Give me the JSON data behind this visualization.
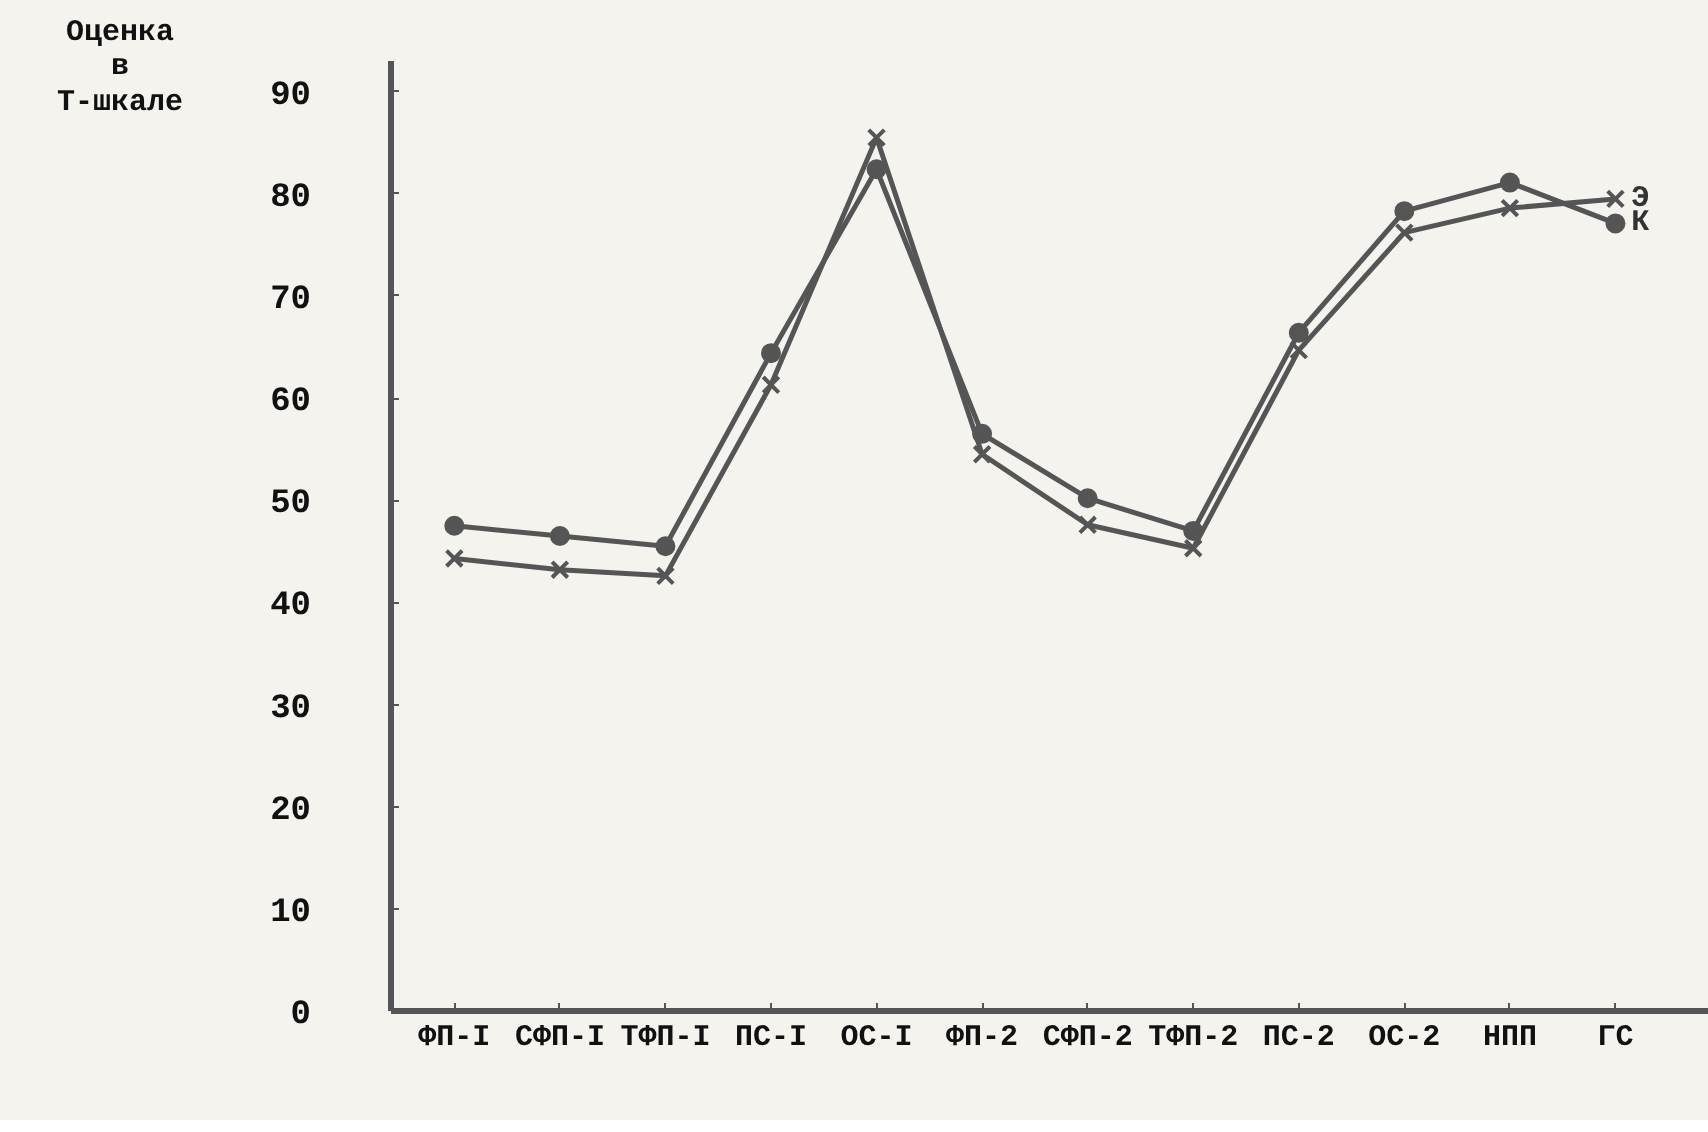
{
  "chart_data": {
    "type": "line",
    "ylabel": "Оценка в Т-шкале",
    "categories": [
      "ФП-I",
      "СФП-I",
      "ТФП-I",
      "ПС-I",
      "ОС-I",
      "ФП-2",
      "СФП-2",
      "ТФП-2",
      "ПС-2",
      "ОС-2",
      "НПП",
      "ГС"
    ],
    "ylim": [
      0,
      93
    ],
    "yticks": [
      0,
      10,
      20,
      30,
      40,
      50,
      60,
      70,
      80,
      90
    ],
    "grid": false,
    "legend": false,
    "series": [
      {
        "name": "Э",
        "color": "#555555",
        "marker": "cross",
        "values": [
          44.3,
          43.2,
          42.6,
          61.3,
          85.5,
          54.5,
          47.6,
          45.3,
          64.7,
          76.2,
          78.6,
          79.5
        ]
      },
      {
        "name": "К",
        "color": "#555555",
        "marker": "circle",
        "values": [
          47.5,
          46.5,
          45.5,
          64.4,
          82.4,
          56.5,
          50.2,
          47,
          66.4,
          78.3,
          81.1,
          77.1
        ]
      }
    ]
  }
}
